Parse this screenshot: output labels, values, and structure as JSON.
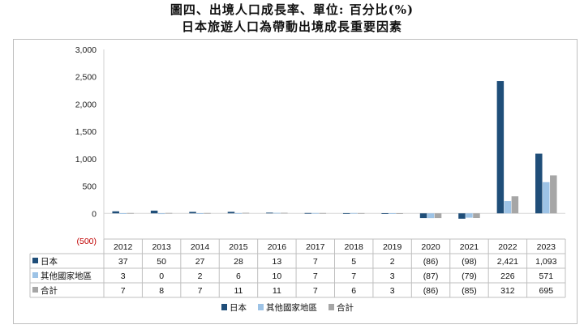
{
  "title_lines": [
    "圖四、出境人口成長率、單位: 百分比(%)",
    "日本旅遊人口為帶動出境成長重要因素"
  ],
  "chart_data": {
    "type": "bar",
    "categories": [
      "2012",
      "2013",
      "2014",
      "2015",
      "2016",
      "2017",
      "2018",
      "2019",
      "2020",
      "2021",
      "2022",
      "2023"
    ],
    "series": [
      {
        "name": "日本",
        "color": "#1f4e79",
        "values": [
          37,
          50,
          27,
          28,
          13,
          7,
          5,
          2,
          -86,
          -98,
          2421,
          1093
        ],
        "labels": [
          "37",
          "50",
          "27",
          "28",
          "13",
          "7",
          "5",
          "2",
          "(86)",
          "(98)",
          "2,421",
          "1,093"
        ]
      },
      {
        "name": "其他國家地區",
        "color": "#9dc3e6",
        "values": [
          3,
          0,
          2,
          6,
          10,
          7,
          7,
          3,
          -87,
          -79,
          226,
          571
        ],
        "labels": [
          "3",
          "0",
          "2",
          "6",
          "10",
          "7",
          "7",
          "3",
          "(87)",
          "(79)",
          "226",
          "571"
        ]
      },
      {
        "name": "合計",
        "color": "#a6a6a6",
        "values": [
          7,
          8,
          7,
          11,
          11,
          7,
          6,
          3,
          -86,
          -85,
          312,
          695
        ],
        "labels": [
          "7",
          "8",
          "7",
          "11",
          "11",
          "7",
          "6",
          "3",
          "(86)",
          "(85)",
          "312",
          "695"
        ]
      }
    ],
    "y_ticks": [
      3000,
      2500,
      2000,
      1500,
      1000,
      500,
      0,
      -500
    ],
    "y_tick_labels": [
      "3,000",
      "2,500",
      "2,000",
      "1,500",
      "1,000",
      "500",
      "0",
      "(500)"
    ],
    "ylim": [
      -500,
      3000
    ],
    "grid": false,
    "legend_position": "bottom"
  },
  "colors": {
    "negative_tick": "#c00000",
    "border": "#bfbfbf"
  }
}
